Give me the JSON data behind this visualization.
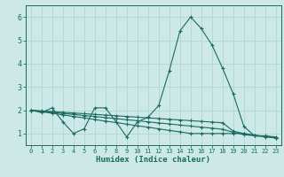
{
  "xlabel": "Humidex (Indice chaleur)",
  "ylabel": "",
  "bg_color": "#cce9e7",
  "line_color": "#1a6b5e",
  "grid_color": "#aad4d0",
  "xlim": [
    -0.5,
    23.5
  ],
  "ylim": [
    0.5,
    6.5
  ],
  "xticks": [
    0,
    1,
    2,
    3,
    4,
    5,
    6,
    7,
    8,
    9,
    10,
    11,
    12,
    13,
    14,
    15,
    16,
    17,
    18,
    19,
    20,
    21,
    22,
    23
  ],
  "yticks": [
    1,
    2,
    3,
    4,
    5,
    6
  ],
  "series": [
    {
      "x": [
        0,
        1,
        2,
        3,
        4,
        5,
        6,
        7,
        8,
        9,
        10,
        11,
        12,
        13,
        14,
        15,
        16,
        17,
        18,
        19,
        20,
        21,
        22,
        23
      ],
      "y": [
        2.0,
        1.9,
        2.1,
        1.5,
        1.0,
        1.2,
        2.1,
        2.1,
        1.5,
        0.85,
        1.5,
        1.7,
        2.2,
        3.7,
        5.4,
        6.0,
        5.5,
        4.8,
        3.8,
        2.7,
        1.3,
        0.9,
        0.9,
        0.85
      ]
    },
    {
      "x": [
        0,
        1,
        2,
        3,
        4,
        5,
        6,
        7,
        8,
        9,
        10,
        11,
        12,
        13,
        14,
        15,
        16,
        17,
        18,
        19,
        20,
        21,
        22,
        23
      ],
      "y": [
        2.0,
        1.93,
        1.87,
        1.8,
        1.73,
        1.67,
        1.6,
        1.53,
        1.47,
        1.4,
        1.33,
        1.27,
        1.2,
        1.13,
        1.07,
        1.0,
        1.0,
        1.0,
        1.0,
        1.0,
        1.0,
        0.93,
        0.87,
        0.8
      ]
    },
    {
      "x": [
        0,
        1,
        2,
        3,
        4,
        5,
        6,
        7,
        8,
        9,
        10,
        11,
        12,
        13,
        14,
        15,
        16,
        17,
        18,
        19,
        20,
        21,
        22,
        23
      ],
      "y": [
        2.0,
        1.95,
        1.91,
        1.86,
        1.82,
        1.77,
        1.73,
        1.68,
        1.64,
        1.59,
        1.55,
        1.5,
        1.45,
        1.41,
        1.36,
        1.32,
        1.27,
        1.23,
        1.18,
        1.05,
        0.95,
        0.9,
        0.86,
        0.82
      ]
    },
    {
      "x": [
        0,
        1,
        2,
        3,
        4,
        5,
        6,
        7,
        8,
        9,
        10,
        11,
        12,
        13,
        14,
        15,
        16,
        17,
        18,
        19,
        20,
        21,
        22,
        23
      ],
      "y": [
        2.0,
        1.97,
        1.94,
        1.91,
        1.88,
        1.85,
        1.82,
        1.79,
        1.76,
        1.73,
        1.7,
        1.67,
        1.64,
        1.61,
        1.58,
        1.55,
        1.52,
        1.49,
        1.46,
        1.1,
        1.0,
        0.92,
        0.88,
        0.82
      ]
    }
  ]
}
